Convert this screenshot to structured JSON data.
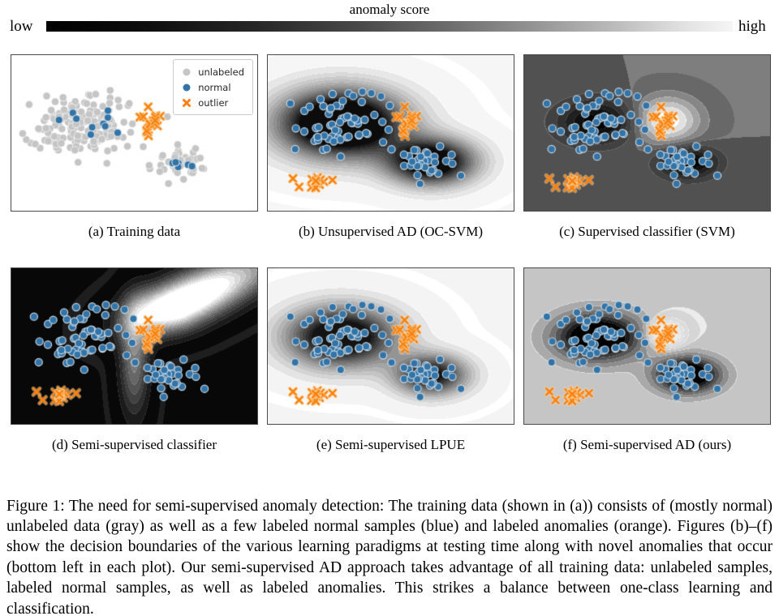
{
  "colorbar": {
    "title": "anomaly score",
    "low_label": "low",
    "high_label": "high",
    "left_color": "#000000",
    "right_color": "#f5f5f5"
  },
  "panels": [
    {
      "id": "a",
      "caption": "(a) Training data"
    },
    {
      "id": "b",
      "caption": "(b) Unsupervised AD (OC-SVM)"
    },
    {
      "id": "c",
      "caption": "(c) Supervised classifier (SVM)"
    },
    {
      "id": "d",
      "caption": "(d) Semi-supervised classifier"
    },
    {
      "id": "e",
      "caption": "(e) Semi-supervised LPUE"
    },
    {
      "id": "f",
      "caption": "(f) Semi-supervised AD (ours)"
    }
  ],
  "legend": {
    "items": [
      {
        "label": "unlabeled",
        "marker": "circle",
        "color": "#c5c5c5"
      },
      {
        "label": "normal",
        "marker": "circle",
        "color": "#3274a8"
      },
      {
        "label": "outlier",
        "marker": "x",
        "color": "#ff7f0e"
      }
    ]
  },
  "figure_caption": "Figure 1: The need for semi-supervised anomaly detection: The training data (shown in (a)) consists of (mostly normal) unlabeled data (gray) as well as a few labeled normal samples (blue) and labeled anomalies (orange). Figures (b)–(f) show the decision boundaries of the various learning paradigms at testing time along with novel anomalies that occur (bottom left in each plot). Our semi-supervised AD approach takes advantage of all training data: unlabeled samples, labeled normal samples, as well as labeled anomalies. This strikes a balance between one-class learning and classification.",
  "chart_data": {
    "type": "scatter",
    "description": "Six-panel 2D toy data. Panel (a): scatter of unlabeled (gray), labeled normal (blue), labeled outlier (orange) points. Panels (b)-(f): same blue/orange points over quantized grayscale anomaly-score contour fields (dark = low score, light = high score), plus novel anomalies bottom-left.",
    "colors": {
      "unlabeled": "#c5c5c5",
      "normal_fill": "#3274a8",
      "normal_edge": "rgba(212,222,230,0.95)",
      "outlier": "#f8820e",
      "outlier_halo": "rgba(253,220,175,0.55)"
    },
    "marker": {
      "dot_radius": 4.6,
      "x_half": 4.0,
      "x_width": 2.6
    },
    "clusters": {
      "gray_big": {
        "seed": 101,
        "n": 158,
        "cx": 0.295,
        "cy": 0.45,
        "sx": 0.105,
        "sy": 0.098
      },
      "gray_small": {
        "seed": 102,
        "n": 44,
        "cx": 0.69,
        "cy": 0.7,
        "sx": 0.062,
        "sy": 0.054
      },
      "blue_a_big": {
        "seed": 103,
        "n": 10,
        "cx": 0.3,
        "cy": 0.43,
        "sx": 0.062,
        "sy": 0.055
      },
      "blue_a_small": {
        "seed": 104,
        "n": 6,
        "cx": 0.675,
        "cy": 0.695,
        "sx": 0.035,
        "sy": 0.03
      },
      "blue_big": {
        "seed": 105,
        "n": 66,
        "cx": 0.3,
        "cy": 0.44,
        "sx": 0.1,
        "sy": 0.09
      },
      "blue_small": {
        "seed": 106,
        "n": 30,
        "cx": 0.665,
        "cy": 0.685,
        "sx": 0.06,
        "sy": 0.05
      },
      "orange_train": {
        "seed": 107,
        "n": 19,
        "cx": 0.573,
        "cy": 0.435,
        "sx": 0.022,
        "sy": 0.036
      },
      "novel_1": {
        "seed": 108,
        "n": 1,
        "cx": 0.105,
        "cy": 0.79,
        "sx": 0.003,
        "sy": 0.003
      },
      "novel_2": {
        "seed": 109,
        "n": 1,
        "cx": 0.127,
        "cy": 0.848,
        "sx": 0.003,
        "sy": 0.003
      },
      "novel_3": {
        "seed": 110,
        "n": 12,
        "cx": 0.198,
        "cy": 0.826,
        "sx": 0.017,
        "sy": 0.02
      },
      "novel_4": {
        "seed": 111,
        "n": 1,
        "cx": 0.263,
        "cy": 0.803,
        "sx": 0.003,
        "sy": 0.003
      }
    },
    "test_overlays": [
      "blue_big",
      "blue_small",
      "orange_train",
      "novel_1",
      "novel_2",
      "novel_3",
      "novel_4"
    ],
    "panel_fields": {
      "a": {
        "kind": "scatter",
        "bg": "#ffffff",
        "groups_order": [
          "gray_big",
          "gray_small",
          "blue_a_big",
          "blue_a_small",
          "orange_train"
        ]
      },
      "b": {
        "kind": "contour",
        "levels": 17,
        "gamma": 1.0,
        "range": [
          0,
          1
        ],
        "stops": [
          [
            0,
            "#f6f6f6"
          ],
          [
            1,
            "#0c0c0c"
          ]
        ],
        "components": [
          {
            "cx": 0.3,
            "cy": 0.44,
            "sx": 0.17,
            "sy": 0.145,
            "amp": 1.6
          },
          {
            "cx": 0.665,
            "cy": 0.685,
            "sx": 0.12,
            "sy": 0.1,
            "amp": 1.3
          }
        ]
      },
      "c": {
        "kind": "contour",
        "levels": 12,
        "gamma": 1.0,
        "range": [
          -1,
          1
        ],
        "stops": [
          [
            -1,
            "#000000"
          ],
          [
            0,
            "#595959"
          ],
          [
            1,
            "#ffffff"
          ]
        ],
        "components": [
          {
            "cx": 0.575,
            "cy": 0.42,
            "sx": 0.095,
            "sy": 0.105,
            "amp": 1.0
          },
          {
            "cx": 0.3,
            "cy": 0.43,
            "sx": 0.115,
            "sy": 0.1,
            "amp": -0.95
          },
          {
            "cx": 0.665,
            "cy": 0.69,
            "sx": 0.085,
            "sy": 0.072,
            "amp": -1.0
          }
        ]
      },
      "d": {
        "kind": "contour",
        "levels": 14,
        "gamma": 1.35,
        "range": [
          0,
          1
        ],
        "stops": [
          [
            0,
            "#080808"
          ],
          [
            1,
            "#ffffff"
          ]
        ],
        "components": [
          {
            "cx": 0.67,
            "cy": 0.24,
            "sx": 0.36,
            "sxNeg": 0.16,
            "sy": 0.105,
            "rot": -38,
            "amp": 1.25
          },
          {
            "cx": 0.5,
            "cy": 0.6,
            "sx": 0.045,
            "sy": 0.26,
            "rot": 0,
            "amp": 0.55
          }
        ]
      },
      "e": {
        "kind": "contour",
        "levels": 15,
        "gamma": 1.0,
        "range": [
          0,
          1
        ],
        "stops": [
          [
            0,
            "#f4f4f4"
          ],
          [
            1,
            "#141414"
          ]
        ],
        "components": [
          {
            "cx": 0.3,
            "cy": 0.44,
            "sx": 0.15,
            "sy": 0.13,
            "amp": 1.3
          },
          {
            "cx": 0.665,
            "cy": 0.685,
            "sx": 0.1,
            "sy": 0.088,
            "amp": 1.05
          }
        ]
      },
      "f": {
        "kind": "contour",
        "levels": 16,
        "gamma": 1.0,
        "range": [
          -1,
          1
        ],
        "stops": [
          [
            -1,
            "#000000"
          ],
          [
            0,
            "#d3d3d3"
          ],
          [
            1,
            "#ffffff"
          ]
        ],
        "components": [
          {
            "cx": 0.3,
            "cy": 0.44,
            "sx": 0.125,
            "sy": 0.108,
            "amp": -1.3
          },
          {
            "cx": 0.665,
            "cy": 0.685,
            "sx": 0.092,
            "sy": 0.08,
            "amp": -1.3
          },
          {
            "cx": 0.575,
            "cy": 0.42,
            "sx": 0.05,
            "sy": 0.06,
            "amp": 0.9
          }
        ]
      }
    }
  }
}
